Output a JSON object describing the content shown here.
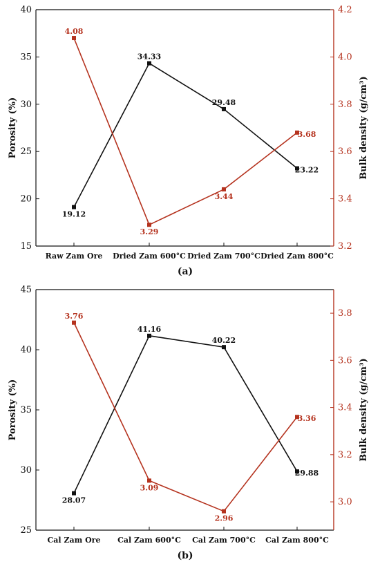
{
  "figure": {
    "charts": [
      "a",
      "b"
    ]
  },
  "chart_data": [
    {
      "type": "line",
      "panel_label": "(a)",
      "categories": [
        "Raw Zam Ore",
        "Dried Zam 600°C",
        "Dried Zam 700°C",
        "Dried Zam 800°C"
      ],
      "ylabel": "Porosity (%)",
      "ylim": [
        15,
        40
      ],
      "yticks": [
        15,
        20,
        25,
        30,
        35,
        40
      ],
      "y2label": "Bulk density (g/cm³)",
      "y2lim": [
        3.2,
        4.2
      ],
      "y2ticks": [
        "3.2",
        "3.4",
        "3.6",
        "3.8",
        "4.0",
        "4.2"
      ],
      "series": [
        {
          "axis": "left",
          "color": "#111111",
          "values": [
            19.12,
            34.33,
            29.48,
            23.22
          ],
          "labels": [
            "19.12",
            "34.33",
            "29.48",
            "23.22"
          ]
        },
        {
          "axis": "right",
          "color": "#b5331f",
          "values": [
            4.08,
            3.29,
            3.44,
            3.68
          ],
          "labels": [
            "4.08",
            "3.29",
            "3.44",
            "3.68"
          ]
        }
      ]
    },
    {
      "type": "line",
      "panel_label": "(b)",
      "categories": [
        "Cal Zam Ore",
        "Cal Zam 600°C",
        "Cal Zam 700°C",
        "Cal Zam 800°C"
      ],
      "ylabel": "Porosity (%)",
      "ylim": [
        25,
        45
      ],
      "yticks": [
        25,
        30,
        35,
        40,
        45
      ],
      "y2label": "Bulk density (g/cm³)",
      "y2lim": [
        2.88,
        3.9
      ],
      "y2ticks": [
        "3.0",
        "3.2",
        "3.4",
        "3.6",
        "3.8"
      ],
      "series": [
        {
          "axis": "left",
          "color": "#111111",
          "values": [
            28.07,
            41.16,
            40.22,
            29.88
          ],
          "labels": [
            "28.07",
            "41.16",
            "40.22",
            "29.88"
          ]
        },
        {
          "axis": "right",
          "color": "#b5331f",
          "values": [
            3.76,
            3.09,
            2.96,
            3.36
          ],
          "labels": [
            "3.76",
            "3.09",
            "2.96",
            "3.36"
          ]
        }
      ]
    }
  ]
}
